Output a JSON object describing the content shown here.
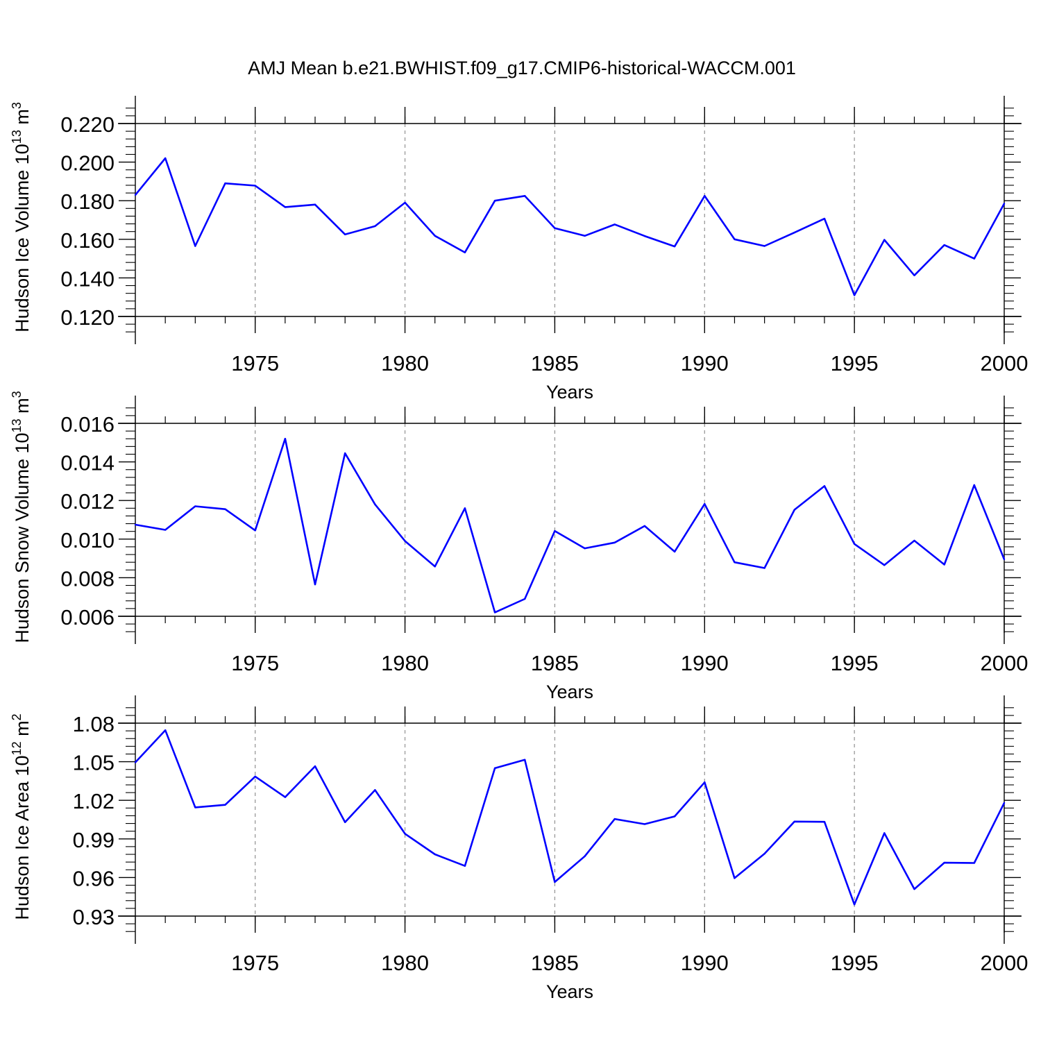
{
  "title": "AMJ Mean b.e21.BWHIST.f09_g17.CMIP6-historical-WACCM.001",
  "chart_data": [
    {
      "type": "line",
      "ylabel": {
        "base": "Hudson Ice Volume 10",
        "exp": "13",
        "unit": " m",
        "unit_exp": "3"
      },
      "xlabel": "Years",
      "xlim": [
        1971,
        2000
      ],
      "ylim": [
        0.12,
        0.22
      ],
      "yticks": [
        "0.120",
        "0.140",
        "0.160",
        "0.180",
        "0.200",
        "0.220"
      ],
      "xticks": [
        "1975",
        "1980",
        "1985",
        "1990",
        "1995",
        "2000"
      ],
      "grid": "vertical dashed at major x ticks",
      "color": "#0000ff",
      "x": [
        1971,
        1972,
        1973,
        1974,
        1975,
        1976,
        1977,
        1978,
        1979,
        1980,
        1981,
        1982,
        1983,
        1984,
        1985,
        1986,
        1987,
        1988,
        1989,
        1990,
        1991,
        1992,
        1993,
        1994,
        1995,
        1996,
        1997,
        1998,
        1999,
        2000
      ],
      "values": [
        0.183,
        0.202,
        0.1565,
        0.189,
        0.1878,
        0.1767,
        0.178,
        0.1625,
        0.1668,
        0.179,
        0.1618,
        0.1532,
        0.18,
        0.1825,
        0.1658,
        0.1618,
        0.1677,
        0.1617,
        0.1563,
        0.1825,
        0.16,
        0.1565,
        0.1635,
        0.1707,
        0.131,
        0.1597,
        0.1413,
        0.157,
        0.15,
        0.1785
      ]
    },
    {
      "type": "line",
      "ylabel": {
        "base": "Hudson Snow Volume 10",
        "exp": "13",
        "unit": " m",
        "unit_exp": "3"
      },
      "xlabel": "Years",
      "xlim": [
        1971,
        2000
      ],
      "ylim": [
        0.006,
        0.016
      ],
      "yticks": [
        "0.006",
        "0.008",
        "0.010",
        "0.012",
        "0.014",
        "0.016"
      ],
      "xticks": [
        "1975",
        "1980",
        "1985",
        "1990",
        "1995",
        "2000"
      ],
      "grid": "vertical dashed at major x ticks",
      "color": "#0000ff",
      "x": [
        1971,
        1972,
        1973,
        1974,
        1975,
        1976,
        1977,
        1978,
        1979,
        1980,
        1981,
        1982,
        1983,
        1984,
        1985,
        1986,
        1987,
        1988,
        1989,
        1990,
        1991,
        1992,
        1993,
        1994,
        1995,
        1996,
        1997,
        1998,
        1999,
        2000
      ],
      "values": [
        0.01075,
        0.01048,
        0.0117,
        0.01155,
        0.01045,
        0.0152,
        0.00765,
        0.01445,
        0.0118,
        0.0099,
        0.00858,
        0.0116,
        0.0062,
        0.0069,
        0.01042,
        0.00952,
        0.00982,
        0.01068,
        0.00935,
        0.01182,
        0.0088,
        0.0085,
        0.01152,
        0.01275,
        0.00975,
        0.00865,
        0.00992,
        0.00868,
        0.0128,
        0.00895
      ]
    },
    {
      "type": "line",
      "ylabel": {
        "base": "Hudson Ice Area 10",
        "exp": "12",
        "unit": " m",
        "unit_exp": "2"
      },
      "xlabel": "Years",
      "xlim": [
        1971,
        2000
      ],
      "ylim": [
        0.93,
        1.08
      ],
      "yticks": [
        "0.93",
        "0.96",
        "0.99",
        "1.02",
        "1.05",
        "1.08"
      ],
      "xticks": [
        "1975",
        "1980",
        "1985",
        "1990",
        "1995",
        "2000"
      ],
      "grid": "vertical dashed at major x ticks",
      "color": "#0000ff",
      "x": [
        1971,
        1972,
        1973,
        1974,
        1975,
        1976,
        1977,
        1978,
        1979,
        1980,
        1981,
        1982,
        1983,
        1984,
        1985,
        1986,
        1987,
        1988,
        1989,
        1990,
        1991,
        1992,
        1993,
        1994,
        1995,
        1996,
        1997,
        1998,
        1999,
        2000
      ],
      "values": [
        1.0495,
        1.0745,
        1.0145,
        1.0165,
        1.0385,
        1.0225,
        1.0465,
        1.003,
        1.028,
        0.994,
        0.978,
        0.969,
        1.045,
        1.0515,
        0.9565,
        0.9765,
        1.0055,
        1.0015,
        1.0075,
        1.034,
        0.9595,
        0.9785,
        1.0035,
        1.0033,
        0.939,
        0.9945,
        0.951,
        0.9715,
        0.9713,
        1.018
      ]
    }
  ]
}
